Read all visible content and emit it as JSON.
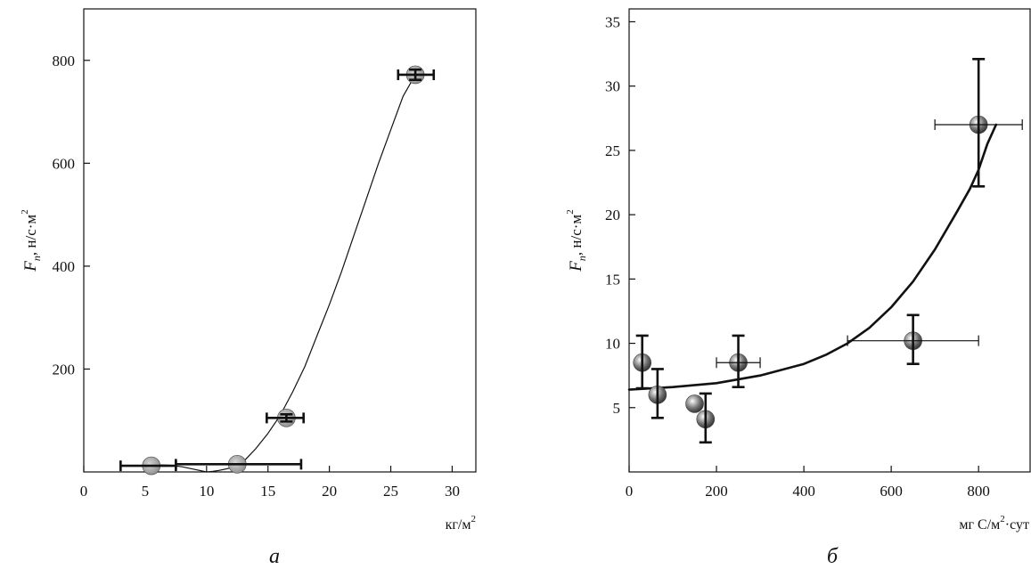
{
  "chart_data": [
    {
      "panel": "a",
      "type": "scatter",
      "caption": "a",
      "xlabel": "кг/м",
      "xlabel_sup": "2",
      "ylabel_var": "F",
      "ylabel_sub": "n",
      "ylabel_units": ", н/с·м",
      "ylabel_sup": "2",
      "xlim": [
        0,
        32
      ],
      "ylim": [
        0,
        900
      ],
      "xticks": [
        0,
        5,
        10,
        15,
        20,
        25,
        30
      ],
      "yticks": [
        200,
        400,
        600,
        800
      ],
      "points": [
        {
          "x": 5.5,
          "y": 12,
          "xerr_lo": 3.0,
          "xerr_hi": 7.5,
          "yerr_lo": 12,
          "yerr_hi": 12
        },
        {
          "x": 12.5,
          "y": 15,
          "xerr_lo": 7.5,
          "xerr_hi": 17.7,
          "yerr_lo": 15,
          "yerr_hi": 15
        },
        {
          "x": 16.5,
          "y": 105,
          "xerr_lo": 14.9,
          "xerr_hi": 17.9,
          "yerr_lo": 98,
          "yerr_hi": 112
        },
        {
          "x": 27.0,
          "y": 772,
          "xerr_lo": 25.6,
          "xerr_hi": 28.5,
          "yerr_lo": 762,
          "yerr_hi": 782
        }
      ],
      "curve": {
        "x": [
          5.5,
          7,
          8,
          9,
          10,
          10.5,
          11,
          12,
          13,
          14,
          15,
          16,
          17,
          18,
          19,
          20,
          21,
          22,
          23,
          24,
          25,
          26,
          27
        ],
        "y": [
          14,
          13,
          10,
          5,
          0,
          1,
          3,
          8,
          20,
          45,
          75,
          110,
          155,
          205,
          265,
          325,
          390,
          460,
          530,
          600,
          665,
          730,
          772
        ]
      }
    },
    {
      "panel": "b",
      "type": "scatter",
      "caption": "б",
      "xlabel": "мг С/м",
      "xlabel_sup": "2",
      "xlabel_tail": "·сут",
      "ylabel_var": "F",
      "ylabel_sub": "n",
      "ylabel_units": ", н/с·м",
      "ylabel_sup": "2",
      "xlim": [
        0,
        920
      ],
      "ylim": [
        0,
        36
      ],
      "xticks": [
        0,
        200,
        400,
        600,
        800
      ],
      "yticks": [
        5,
        10,
        15,
        20,
        25,
        30,
        35
      ],
      "points": [
        {
          "x": 30,
          "y": 8.5,
          "xerr_lo": 30,
          "xerr_hi": 30,
          "yerr_lo": 6.5,
          "yerr_hi": 10.6
        },
        {
          "x": 65,
          "y": 6.0,
          "xerr_lo": 65,
          "xerr_hi": 65,
          "yerr_lo": 4.2,
          "yerr_hi": 8.0
        },
        {
          "x": 150,
          "y": 5.3,
          "xerr_lo": 150,
          "xerr_hi": 150,
          "yerr_lo": 5.3,
          "yerr_hi": 5.3
        },
        {
          "x": 175,
          "y": 4.1,
          "xerr_lo": 175,
          "xerr_hi": 175,
          "yerr_lo": 2.3,
          "yerr_hi": 6.1
        },
        {
          "x": 250,
          "y": 8.5,
          "xerr_lo": 200,
          "xerr_hi": 300,
          "yerr_lo": 6.6,
          "yerr_hi": 10.6
        },
        {
          "x": 650,
          "y": 10.2,
          "xerr_lo": 500,
          "xerr_hi": 800,
          "yerr_lo": 8.4,
          "yerr_hi": 12.2
        },
        {
          "x": 800,
          "y": 27.0,
          "xerr_lo": 700,
          "xerr_hi": 900,
          "yerr_lo": 22.2,
          "yerr_hi": 32.1
        }
      ],
      "curve": {
        "x": [
          0,
          100,
          200,
          300,
          400,
          450,
          500,
          550,
          600,
          650,
          700,
          750,
          780,
          800,
          820,
          840
        ],
        "y": [
          6.4,
          6.6,
          6.9,
          7.5,
          8.4,
          9.1,
          10.0,
          11.2,
          12.8,
          14.8,
          17.3,
          20.2,
          22.0,
          23.5,
          25.5,
          27.0
        ]
      }
    }
  ]
}
